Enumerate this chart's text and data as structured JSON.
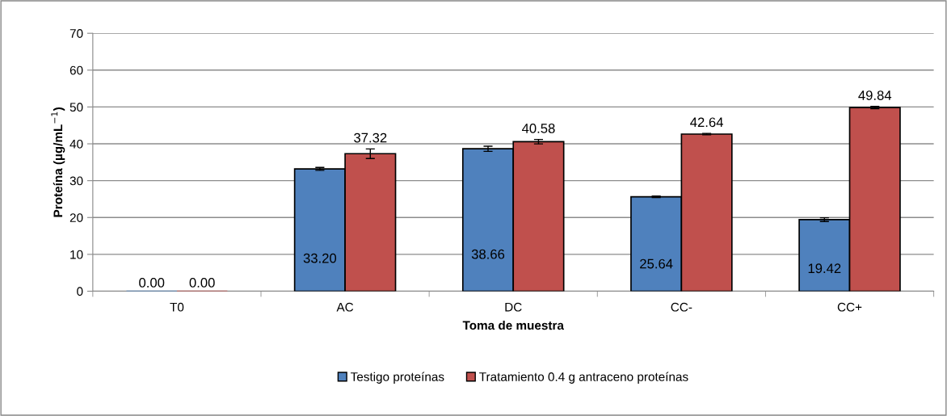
{
  "chart_data": {
    "type": "bar",
    "xlabel": "Toma de muestra",
    "ylabel": "Proteína (µg/mL$^{−1}$)",
    "categories": [
      "T0",
      "AC",
      "DC",
      "CC-",
      "CC+"
    ],
    "series": [
      {
        "name": "Testigo proteínas",
        "color": "#4f81bd",
        "values": [
          0.0,
          33.2,
          38.66,
          25.64,
          19.42
        ],
        "errors": [
          null,
          0.4,
          0.7,
          0.2,
          0.5
        ],
        "value_labels": [
          "0.00",
          "33.20",
          "38.66",
          "25.64",
          "19.42"
        ]
      },
      {
        "name": "Tratamiento 0.4 g antraceno proteínas",
        "color": "#c0504d",
        "values": [
          0.0,
          37.32,
          40.58,
          42.64,
          49.84
        ],
        "errors": [
          null,
          1.3,
          0.6,
          0.2,
          0.3
        ],
        "value_labels": [
          "0.00",
          "37.32",
          "40.58",
          "42.64",
          "49.84"
        ]
      }
    ],
    "ylim": [
      0,
      70
    ],
    "yticks": [
      0,
      10,
      20,
      30,
      40,
      50,
      60,
      70
    ],
    "grid": "y",
    "legend": "bottom"
  }
}
